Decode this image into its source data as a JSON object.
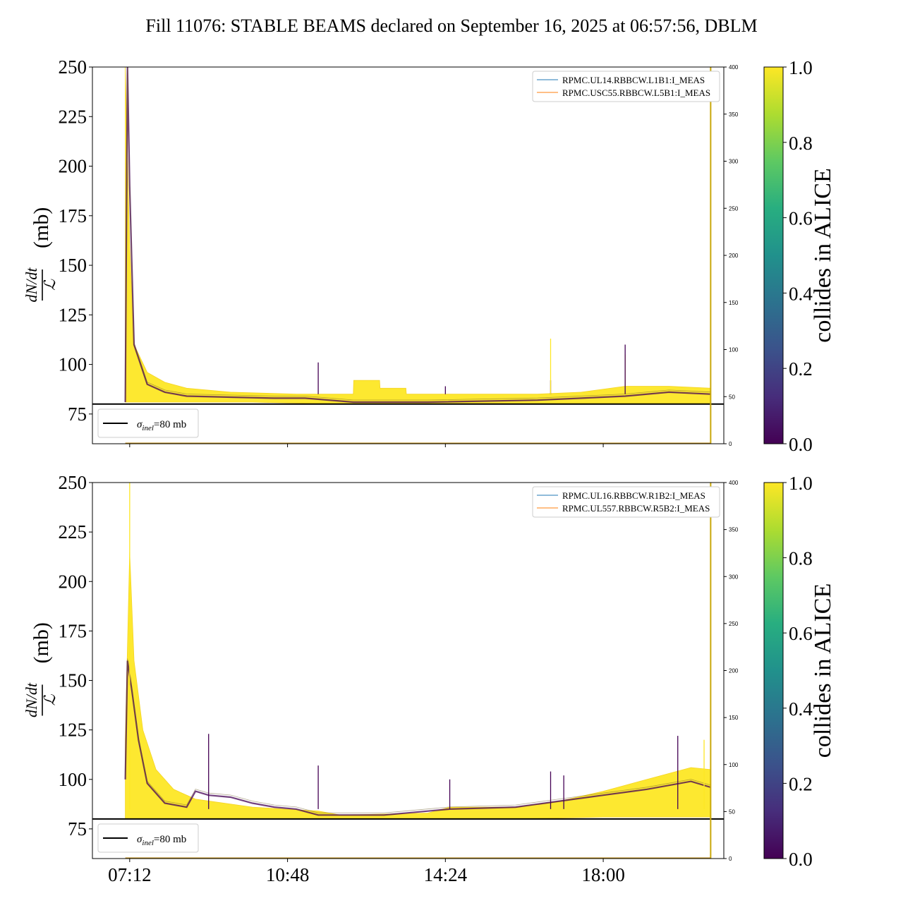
{
  "chart_data": {
    "title": "Fill 11076: STABLE BEAMS declared on September 16, 2025 at 06:57:56, DBLM",
    "type": "line",
    "x_tick_labels": [
      "07:12",
      "10:48",
      "14:24",
      "18:00"
    ],
    "x_ticks_hours": [
      7.2,
      10.8,
      14.4,
      18.0
    ],
    "xlim_hours": [
      6.35,
      20.75
    ],
    "ylim": [
      60,
      250
    ],
    "y_ticks": [
      75,
      100,
      125,
      150,
      175,
      200,
      225,
      250
    ],
    "secondary_ylim": [
      0,
      400
    ],
    "secondary_y_ticks": [
      0,
      50,
      100,
      150,
      200,
      250,
      300,
      350,
      400
    ],
    "ylabel_numerator": "dN/dt",
    "ylabel_denominator": "ℒ",
    "ylabel_unit": "(mb)",
    "colorbar": {
      "label": "collides in ALICE",
      "range": [
        0.0,
        1.0
      ],
      "ticks": [
        "0.0",
        "0.2",
        "0.4",
        "0.6",
        "0.8",
        "1.0"
      ],
      "colormap": "viridis"
    },
    "reference_line": {
      "label_symbol": "σ",
      "label_sub": "inel",
      "label_value": "=80 mb",
      "y": 80,
      "color": "#000000"
    },
    "end_marker_hours": 20.45,
    "panels": [
      {
        "legend": [
          "RPMC.UL14.RBBCW.L1B1:I_MEAS",
          "RPMC.USC55.RBBCW.L5B1:I_MEAS"
        ],
        "legend_colors": [
          "#1f77b4",
          "#ff7f0e"
        ],
        "yellow_band_upper": [
          [
            7.1,
            250
          ],
          [
            7.2,
            160
          ],
          [
            7.3,
            110
          ],
          [
            7.6,
            96
          ],
          [
            8.0,
            91
          ],
          [
            8.5,
            88
          ],
          [
            9.5,
            86
          ],
          [
            11.0,
            85
          ],
          [
            12.3,
            85
          ],
          [
            12.31,
            92
          ],
          [
            12.9,
            92
          ],
          [
            12.91,
            88
          ],
          [
            13.5,
            88
          ],
          [
            13.51,
            85
          ],
          [
            16.5,
            85
          ],
          [
            17.5,
            86
          ],
          [
            18.5,
            89
          ],
          [
            19.5,
            89
          ],
          [
            20.45,
            88
          ]
        ],
        "yellow_band_lower": [
          [
            7.1,
            81
          ],
          [
            8.0,
            81
          ],
          [
            10.0,
            81
          ],
          [
            12.0,
            80
          ],
          [
            14.0,
            80
          ],
          [
            16.0,
            80
          ],
          [
            18.0,
            80
          ],
          [
            20.45,
            80
          ]
        ],
        "purple_trace": [
          [
            7.1,
            81
          ],
          [
            7.15,
            250
          ],
          [
            7.2,
            190
          ],
          [
            7.25,
            150
          ],
          [
            7.3,
            110
          ],
          [
            7.6,
            90
          ],
          [
            8.0,
            86
          ],
          [
            8.5,
            84
          ],
          [
            9.5,
            83.5
          ],
          [
            10.5,
            83
          ],
          [
            11.0,
            83
          ],
          [
            11.2,
            83
          ],
          [
            12.3,
            81
          ],
          [
            14.0,
            81
          ],
          [
            16.5,
            82
          ],
          [
            17.5,
            83
          ],
          [
            18.5,
            84
          ],
          [
            19.5,
            86
          ],
          [
            20.45,
            85
          ]
        ],
        "spikes": [
          [
            11.5,
            101,
            "purple"
          ],
          [
            14.4,
            89,
            "purple"
          ],
          [
            16.8,
            92,
            "purple"
          ],
          [
            16.8,
            113,
            "yellow"
          ],
          [
            18.5,
            105,
            "yellow"
          ],
          [
            18.5,
            110,
            "purple"
          ]
        ]
      },
      {
        "legend": [
          "RPMC.UL16.RBBCW.R1B2:I_MEAS",
          "RPMC.UL557.RBBCW.R5B2:I_MEAS"
        ],
        "legend_colors": [
          "#1f77b4",
          "#ff7f0e"
        ],
        "yellow_band_upper": [
          [
            7.1,
            120
          ],
          [
            7.2,
            215
          ],
          [
            7.3,
            160
          ],
          [
            7.5,
            125
          ],
          [
            7.8,
            105
          ],
          [
            8.2,
            95
          ],
          [
            8.7,
            90
          ],
          [
            10.0,
            86
          ],
          [
            11.5,
            84
          ],
          [
            12.0,
            82
          ],
          [
            14.0,
            83
          ],
          [
            14.5,
            86
          ],
          [
            16.0,
            86
          ],
          [
            17.0,
            89
          ],
          [
            18.0,
            94
          ],
          [
            19.0,
            100
          ],
          [
            20.0,
            106
          ],
          [
            20.45,
            105
          ]
        ],
        "yellow_band_lower": [
          [
            7.1,
            80
          ],
          [
            8.0,
            80
          ],
          [
            10.0,
            80
          ],
          [
            12.0,
            80
          ],
          [
            14.0,
            80
          ],
          [
            16.0,
            80
          ],
          [
            18.0,
            81
          ],
          [
            20.45,
            81
          ]
        ],
        "purple_trace": [
          [
            7.1,
            100
          ],
          [
            7.15,
            160
          ],
          [
            7.25,
            145
          ],
          [
            7.4,
            120
          ],
          [
            7.6,
            98
          ],
          [
            8.0,
            88
          ],
          [
            8.5,
            86
          ],
          [
            8.7,
            94
          ],
          [
            9.0,
            92
          ],
          [
            9.5,
            91
          ],
          [
            10.0,
            88
          ],
          [
            10.5,
            86
          ],
          [
            11.0,
            85
          ],
          [
            11.5,
            82
          ],
          [
            12.0,
            82
          ],
          [
            13.0,
            82
          ],
          [
            14.0,
            84
          ],
          [
            14.5,
            85
          ],
          [
            16.0,
            86
          ],
          [
            17.0,
            89
          ],
          [
            18.0,
            92
          ],
          [
            19.0,
            95
          ],
          [
            20.0,
            99
          ],
          [
            20.45,
            96
          ]
        ],
        "spikes": [
          [
            7.2,
            250,
            "yellow"
          ],
          [
            9.0,
            123,
            "purple"
          ],
          [
            11.5,
            107,
            "purple"
          ],
          [
            14.5,
            100,
            "purple"
          ],
          [
            16.8,
            104,
            "purple"
          ],
          [
            17.1,
            102,
            "purple"
          ],
          [
            19.7,
            122,
            "purple"
          ],
          [
            20.3,
            120,
            "yellow"
          ]
        ]
      }
    ]
  }
}
